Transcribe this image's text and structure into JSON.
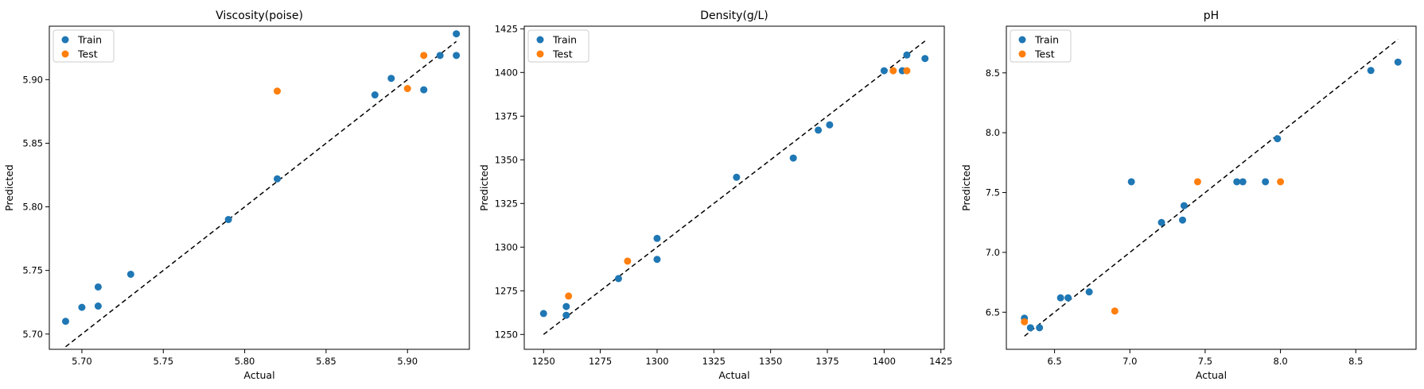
{
  "colors": {
    "train": "#1f77b4",
    "test": "#ff7f0e",
    "ideal": "#000000"
  },
  "chart_data": [
    {
      "type": "scatter",
      "title": "Viscosity(poise)",
      "xlabel": "Actual",
      "ylabel": "Predicted",
      "xlim": [
        5.68,
        5.938
      ],
      "ylim": [
        5.688,
        5.942
      ],
      "xticks": [
        "5.70",
        "5.75",
        "5.80",
        "5.85",
        "5.90"
      ],
      "yticks": [
        "5.70",
        "5.75",
        "5.80",
        "5.85",
        "5.90"
      ],
      "ideal_line": [
        5.69,
        5.93
      ],
      "legend": {
        "position": "upper-left",
        "entries": [
          "Train",
          "Test"
        ]
      },
      "series": [
        {
          "name": "Train",
          "x": [
            5.69,
            5.7,
            5.71,
            5.71,
            5.73,
            5.79,
            5.82,
            5.88,
            5.89,
            5.91,
            5.92,
            5.93,
            5.93
          ],
          "y": [
            5.71,
            5.721,
            5.722,
            5.737,
            5.747,
            5.79,
            5.822,
            5.888,
            5.901,
            5.892,
            5.919,
            5.919,
            5.936
          ]
        },
        {
          "name": "Test",
          "x": [
            5.82,
            5.9,
            5.91
          ],
          "y": [
            5.891,
            5.893,
            5.919
          ]
        }
      ]
    },
    {
      "type": "scatter",
      "title": "Density(g/L)",
      "xlabel": "Actual",
      "ylabel": "Predicted",
      "xlim": [
        1241.5,
        1426.5
      ],
      "ylim": [
        1241.5,
        1426.5
      ],
      "xticks": [
        "1250",
        "1275",
        "1300",
        "1325",
        "1350",
        "1375",
        "1400",
        "1425"
      ],
      "yticks": [
        "1250",
        "1275",
        "1300",
        "1325",
        "1350",
        "1375",
        "1400",
        "1425"
      ],
      "ideal_line": [
        1250,
        1418
      ],
      "legend": {
        "position": "upper-left",
        "entries": [
          "Train",
          "Test"
        ]
      },
      "series": [
        {
          "name": "Train",
          "x": [
            1250,
            1260,
            1260,
            1283,
            1300,
            1300,
            1335,
            1360,
            1371,
            1376,
            1400,
            1408,
            1410,
            1418
          ],
          "y": [
            1262,
            1261,
            1266,
            1282,
            1293,
            1305,
            1340,
            1351,
            1367,
            1370,
            1401,
            1401,
            1410,
            1408
          ]
        },
        {
          "name": "Test",
          "x": [
            1261,
            1287,
            1404,
            1410
          ],
          "y": [
            1272,
            1292,
            1401,
            1401
          ]
        }
      ]
    },
    {
      "type": "scatter",
      "title": "pH",
      "xlabel": "Actual",
      "ylabel": "Predicted",
      "xlim": [
        6.18,
        8.9
      ],
      "ylim": [
        6.19,
        8.89
      ],
      "xticks": [
        "6.5",
        "7.0",
        "7.5",
        "8.0",
        "8.5"
      ],
      "yticks": [
        "6.5",
        "7.0",
        "7.5",
        "8.0",
        "8.5"
      ],
      "ideal_line": [
        6.3,
        8.78
      ],
      "legend": {
        "position": "upper-left",
        "entries": [
          "Train",
          "Test"
        ]
      },
      "series": [
        {
          "name": "Train",
          "x": [
            6.3,
            6.34,
            6.4,
            6.54,
            6.59,
            6.73,
            7.01,
            7.21,
            7.35,
            7.36,
            7.71,
            7.75,
            7.9,
            7.98,
            8.6,
            8.78
          ],
          "y": [
            6.45,
            6.37,
            6.37,
            6.62,
            6.62,
            6.67,
            7.59,
            7.25,
            7.27,
            7.39,
            7.59,
            7.59,
            7.59,
            7.95,
            8.52,
            8.59
          ]
        },
        {
          "name": "Test",
          "x": [
            6.3,
            6.9,
            7.45,
            8.0
          ],
          "y": [
            6.42,
            6.51,
            7.59,
            7.59
          ]
        }
      ]
    }
  ]
}
